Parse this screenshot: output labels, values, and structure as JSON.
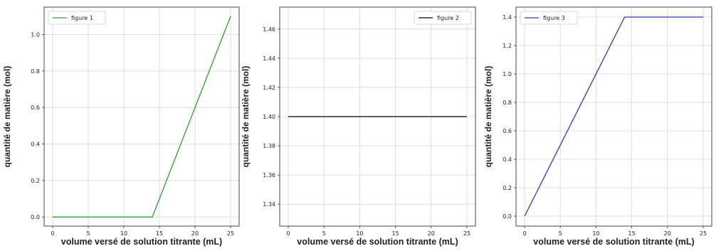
{
  "chart_data": [
    {
      "type": "line",
      "legend_position": "top-left",
      "grid": true,
      "xlabel": "volume versé de solution titrante (mL)",
      "ylabel": "quantité de matière (mol)",
      "xlim": [
        -1.2,
        26.2
      ],
      "ylim": [
        -0.05,
        1.15
      ],
      "xticks": [
        0,
        5,
        10,
        15,
        20,
        25
      ],
      "yticks": [
        0.0,
        0.2,
        0.4,
        0.6,
        0.8,
        1.0
      ],
      "ytick_labels": [
        "0.0",
        "0.2",
        "0.4",
        "0.6",
        "0.8",
        "1.0"
      ],
      "series": [
        {
          "name": "figure 1",
          "color": "#2ca02c",
          "x": [
            0,
            14,
            25
          ],
          "y": [
            0,
            0,
            1.1
          ]
        }
      ]
    },
    {
      "type": "line",
      "legend_position": "top-right",
      "grid": true,
      "xlabel": "volume versé de solution titrante (mL)",
      "ylabel": "quantité de matière (mol)",
      "xlim": [
        -1.2,
        26.2
      ],
      "ylim": [
        1.325,
        1.475
      ],
      "xticks": [
        0,
        5,
        10,
        15,
        20,
        25
      ],
      "yticks": [
        1.34,
        1.36,
        1.38,
        1.4,
        1.42,
        1.44,
        1.46
      ],
      "ytick_labels": [
        "1.34",
        "1.36",
        "1.38",
        "1.40",
        "1.42",
        "1.44",
        "1.46"
      ],
      "series": [
        {
          "name": "figure 2",
          "color": "#000000",
          "x": [
            0,
            25
          ],
          "y": [
            1.4,
            1.4
          ]
        }
      ]
    },
    {
      "type": "line",
      "legend_position": "top-left",
      "grid": true,
      "xlabel": "volume versé de solution titrante (mL)",
      "ylabel": "quantité de matière (mol)",
      "xlim": [
        -1.2,
        26.2
      ],
      "ylim": [
        -0.07,
        1.47
      ],
      "xticks": [
        0,
        5,
        10,
        15,
        20,
        25
      ],
      "yticks": [
        0.0,
        0.2,
        0.4,
        0.6,
        0.8,
        1.0,
        1.2,
        1.4
      ],
      "ytick_labels": [
        "0.0",
        "0.2",
        "0.4",
        "0.6",
        "0.8",
        "1.0",
        "1.2",
        "1.4"
      ],
      "series": [
        {
          "name": "figure 3",
          "color": "#3333cc",
          "x": [
            0,
            14,
            25
          ],
          "y": [
            0,
            1.4,
            1.4
          ]
        }
      ]
    }
  ]
}
